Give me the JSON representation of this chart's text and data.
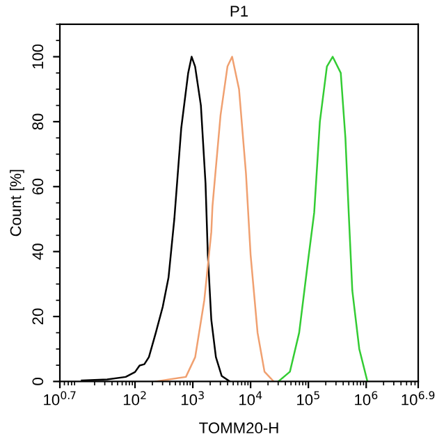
{
  "chart_data": {
    "type": "line",
    "title": "P1",
    "xlabel": "TOMM20-H",
    "ylabel": "Count [%]",
    "log": "x",
    "grid": false,
    "marker": "none",
    "line_style": "solid",
    "xlim": [
      5.012,
      7943282
    ],
    "xticks": [
      {
        "value": 5.012,
        "label": "10$^{0.7}$"
      },
      {
        "value": 100,
        "label": "10$^{2}$"
      },
      {
        "value": 1000,
        "label": "10$^{3}$"
      },
      {
        "value": 10000,
        "label": "10$^{4}$"
      },
      {
        "value": 100000,
        "label": "10$^{5}$"
      },
      {
        "value": 1000000,
        "label": "10$^{6}$"
      },
      {
        "value": 7943282,
        "label": "10$^{6.9}$"
      }
    ],
    "ylim": [
      0,
      110
    ],
    "yticks": [
      0,
      20,
      40,
      60,
      80,
      100
    ],
    "series": [
      {
        "color": "#000000",
        "x": [
          12,
          33,
          69,
          100,
          120,
          145,
          174,
          229,
          302,
          380,
          479,
          631,
          832,
          955,
          1096,
          1380,
          1660,
          1820,
          2090,
          2510,
          3160,
          4370
        ],
        "values": [
          0.3,
          0.6,
          1.4,
          2.9,
          4.9,
          5.3,
          7.5,
          15,
          23,
          32,
          50,
          78,
          95,
          100,
          97,
          85,
          61,
          39,
          19,
          7.5,
          1.7,
          0
        ]
      },
      {
        "color": "#f0a070",
        "x": [
          229,
          759,
          1100,
          1580,
          2090,
          2190,
          3020,
          3980,
          4790,
          6310,
          8320,
          10000,
          13200,
          17400,
          25100
        ],
        "values": [
          0,
          1.4,
          7.5,
          25,
          46,
          54,
          82,
          97,
          100,
          90,
          64,
          39,
          15,
          3,
          0
        ]
      },
      {
        "color": "#33cc33",
        "x": [
          30200,
          47900,
          69200,
          100000,
          126000,
          158000,
          209000,
          263000,
          363000,
          437000,
          501000,
          575000,
          759000,
          1050000
        ],
        "values": [
          0,
          3,
          15,
          38,
          52,
          80,
          97,
          100,
          95,
          75,
          51,
          28,
          10,
          0
        ]
      }
    ]
  }
}
